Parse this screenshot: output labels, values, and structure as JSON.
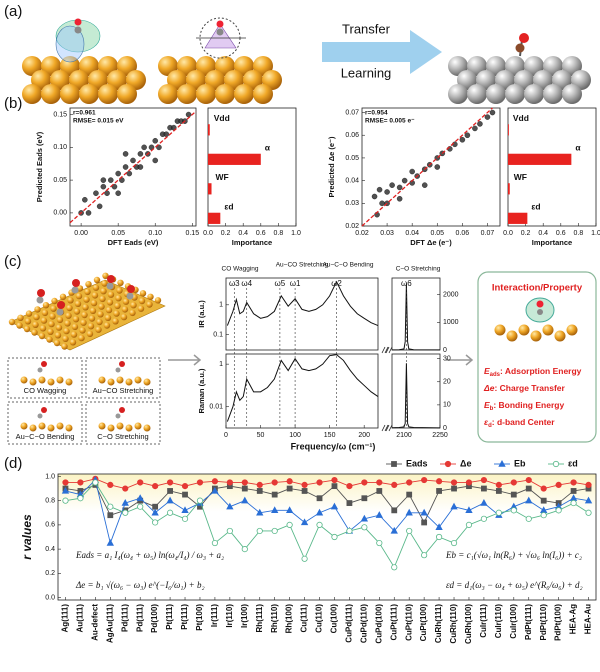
{
  "panel_labels": [
    "(a)",
    "(b)",
    "(c)",
    "(d)"
  ],
  "panel_a": {
    "arrow_text": [
      "Transfer",
      "Learning"
    ]
  },
  "panel_c": {
    "modes": [
      "CO Wagging",
      "Au−CO  Stretching",
      "Au−C−O  Bending",
      "C−O Stretching"
    ],
    "property_title": "Interaction/Property",
    "properties": [
      {
        "symbol": "E",
        "sub": "ads",
        "text": ": Adsorption Energy"
      },
      {
        "symbol": "Δe",
        "text": ": Charge Transfer"
      },
      {
        "symbol": "E",
        "sub": "b",
        "text": ": Bonding Energy"
      },
      {
        "symbol": "ε",
        "sub": "d",
        "text": ": d-band Center"
      }
    ]
  },
  "chart_data": [
    {
      "type": "scatter",
      "annotations": [
        "r=0.961",
        "RMSE= 0.015 eV"
      ],
      "xlabel": "DFT Eads (eV)",
      "ylabel": "Predicted Eads (eV)",
      "color": "#333333",
      "fit_line": true,
      "x": [
        0.0,
        0.005,
        0.01,
        0.02,
        0.025,
        0.03,
        0.035,
        0.04,
        0.045,
        0.05,
        0.055,
        0.06,
        0.065,
        0.07,
        0.075,
        0.08,
        0.085,
        0.09,
        0.095,
        0.1,
        0.105,
        0.11,
        0.115,
        0.12,
        0.125,
        0.13,
        0.135,
        0.14,
        0.145,
        0.05,
        0.06,
        0.08,
        0.1,
        0.03
      ],
      "values": [
        0.0,
        0.02,
        0.0,
        0.03,
        0.01,
        0.04,
        0.03,
        0.05,
        0.04,
        0.06,
        0.05,
        0.07,
        0.06,
        0.08,
        0.07,
        0.09,
        0.1,
        0.09,
        0.1,
        0.11,
        0.1,
        0.12,
        0.12,
        0.13,
        0.13,
        0.14,
        0.14,
        0.14,
        0.15,
        0.03,
        0.09,
        0.07,
        0.08,
        0.05
      ],
      "xlim": [
        -0.015,
        0.155
      ],
      "xticks": [
        {
          "value": 0,
          "label": "0.00"
        },
        0.05,
        {
          "value": 0.1,
          "label": "0.10"
        },
        0.15
      ],
      "ylim": [
        -0.02,
        0.16
      ],
      "yticks": [
        {
          "value": 0,
          "label": "0.00"
        },
        0.05,
        {
          "value": 0.1,
          "label": "0.10"
        },
        0.15
      ]
    },
    {
      "type": "bar",
      "orientation": "horizontal",
      "categories": [
        "Vdd",
        "α",
        "WF",
        "εd"
      ],
      "values": [
        0.02,
        0.6,
        0.04,
        0.14
      ],
      "color": "#e8231f",
      "xlabel": "Importance",
      "xlim": [
        0,
        1
      ],
      "xticks": [
        {
          "value": 0,
          "label": "0.0"
        },
        0.2,
        0.4,
        0.6,
        0.8,
        {
          "value": 1,
          "label": "1.0"
        }
      ]
    },
    {
      "type": "scatter",
      "annotations": [
        "r=0.954",
        "RMSE= 0.005 e⁻"
      ],
      "xlabel": "DFT Δe (e⁻)",
      "ylabel": "Predicted Δe (e⁻)",
      "color": "#333333",
      "fit_line": true,
      "x": [
        0.025,
        0.027,
        0.03,
        0.032,
        0.035,
        0.037,
        0.04,
        0.042,
        0.045,
        0.047,
        0.05,
        0.052,
        0.055,
        0.057,
        0.06,
        0.062,
        0.065,
        0.067,
        0.07,
        0.072,
        0.03,
        0.035,
        0.04,
        0.045,
        0.05,
        0.026,
        0.028
      ],
      "values": [
        0.033,
        0.036,
        0.035,
        0.038,
        0.037,
        0.04,
        0.039,
        0.042,
        0.045,
        0.047,
        0.05,
        0.052,
        0.054,
        0.056,
        0.058,
        0.06,
        0.063,
        0.065,
        0.068,
        0.07,
        0.03,
        0.032,
        0.044,
        0.038,
        0.046,
        0.025,
        0.03
      ],
      "xlim": [
        0.02,
        0.075
      ],
      "xticks": [
        0.02,
        0.03,
        0.04,
        0.05,
        0.06,
        0.07
      ],
      "ylim": [
        0.02,
        0.072
      ],
      "yticks": [
        0.02,
        0.03,
        0.04,
        0.05,
        0.06,
        0.07
      ]
    },
    {
      "type": "bar",
      "orientation": "horizontal",
      "categories": [
        "Vdd",
        "α",
        "WF",
        "εd"
      ],
      "values": [
        0.01,
        0.72,
        0.02,
        0.22
      ],
      "color": "#e8231f",
      "xlabel": "Importance",
      "xlim": [
        0,
        1
      ],
      "xticks": [
        {
          "value": 0,
          "label": "0.0"
        },
        0.2,
        0.4,
        0.6,
        0.8,
        {
          "value": 1,
          "label": "1.0"
        }
      ]
    },
    {
      "type": "spectrum",
      "ylabel": "IR (a.u.)",
      "log_y": true,
      "section_titles": [
        "CO Wagging",
        "Au−CO Stretching",
        "Au−C−O Bending",
        "C−O Stretching"
      ],
      "mode_labels": [
        {
          "label": "ω3",
          "x": 12
        },
        {
          "label": "ω4",
          "x": 30
        },
        {
          "label": "ω5",
          "x": 78
        },
        {
          "label": "ω1",
          "x": 100
        },
        {
          "label": "ω2",
          "x": 160
        },
        {
          "label": "ω6",
          "x": 2110
        }
      ],
      "xlim": [
        0,
        220
      ],
      "x2lim": [
        2050,
        2250
      ],
      "ylim": [
        0.03,
        8
      ],
      "yticks": [
        0.1,
        1
      ],
      "y2lim": [
        0,
        2600
      ],
      "y2ticks": [
        0,
        1000,
        2000
      ],
      "series": [
        {
          "color": "#111111",
          "x": [
            2,
            10,
            15,
            20,
            25,
            30,
            40,
            50,
            60,
            70,
            80,
            90,
            100,
            110,
            120,
            130,
            140,
            150,
            160,
            170,
            180,
            190,
            200,
            210,
            220
          ],
          "values": [
            0.2,
            0.6,
            1.5,
            0.5,
            0.6,
            1.2,
            0.5,
            0.35,
            0.4,
            0.6,
            2,
            0.9,
            1.6,
            0.7,
            0.6,
            0.7,
            1,
            2,
            6,
            2,
            0.9,
            0.5,
            0.35,
            0.25,
            0.2
          ]
        },
        {
          "color": "#111111",
          "axis": "y2",
          "x": [
            2050,
            2080,
            2100,
            2105,
            2110,
            2115,
            2120,
            2140,
            2250
          ],
          "values": [
            5,
            10,
            40,
            300,
            2400,
            300,
            40,
            10,
            3
          ]
        }
      ]
    },
    {
      "type": "spectrum",
      "ylabel": "Raman (a.u.)",
      "xlabel": "Frequency/ω (cm⁻¹)",
      "log_y": true,
      "xlim": [
        0,
        220
      ],
      "xticks": [
        0,
        50,
        100,
        150,
        200
      ],
      "x2lim": [
        2050,
        2250
      ],
      "x2ticks": [
        2100,
        2250
      ],
      "ylim": [
        0.001,
        3
      ],
      "yticks": [
        0.01,
        1
      ],
      "y2lim": [
        0,
        32
      ],
      "y2ticks": [
        0,
        10,
        20,
        30
      ],
      "series": [
        {
          "color": "#111111",
          "x": [
            2,
            10,
            15,
            20,
            25,
            30,
            40,
            50,
            60,
            70,
            80,
            90,
            100,
            110,
            120,
            130,
            140,
            150,
            160,
            170,
            180,
            190,
            200,
            210,
            220
          ],
          "values": [
            0.002,
            0.01,
            0.05,
            0.02,
            0.03,
            0.2,
            0.05,
            0.05,
            0.08,
            0.2,
            1.5,
            0.5,
            1.8,
            0.6,
            0.5,
            0.6,
            1,
            2.5,
            2.8,
            1.5,
            0.5,
            0.2,
            0.1,
            0.05,
            0.03
          ]
        },
        {
          "color": "#111111",
          "axis": "y2",
          "x": [
            2050,
            2080,
            2100,
            2105,
            2110,
            2115,
            2120,
            2140,
            2250
          ],
          "values": [
            0.1,
            0.2,
            0.5,
            2,
            28,
            2,
            0.5,
            0.2,
            0.05
          ]
        }
      ]
    },
    {
      "type": "line",
      "ylabel": "r values",
      "legend": "top-right",
      "categories": [
        "Ag(111)",
        "Au(111)",
        "Au-defect",
        "AgAu(111)",
        "Pd(111)",
        "Pd(111)",
        "Pd(100)",
        "Pt(111)",
        "Pt(111)",
        "Pt(100)",
        "Ir(111)",
        "Ir(110)",
        "Ir(100)",
        "Rh(111)",
        "Rh(110)",
        "Rh(100)",
        "Cu(111)",
        "Cu(110)",
        "Cu(100)",
        "CuPd(111)",
        "CuPd(110)",
        "CuPd(100)",
        "CuPt(111)",
        "CuPt(110)",
        "CuPt(100)",
        "CuRh(111)",
        "CuRh(110)",
        "CuRh(100)",
        "CuIr(111)",
        "CuIr(110)",
        "CuIr(100)",
        "PdPt(111)",
        "PdPt(110)",
        "PdPt(100)",
        "HEA-Ag",
        "HEA-Au"
      ],
      "series": [
        {
          "name": "Eads",
          "color": "#555555",
          "marker": "square",
          "values": [
            0.9,
            0.88,
            0.93,
            0.68,
            0.72,
            0.8,
            0.75,
            0.88,
            0.85,
            0.75,
            0.9,
            0.92,
            0.9,
            0.88,
            0.85,
            0.9,
            0.88,
            0.82,
            0.92,
            0.78,
            0.82,
            0.88,
            0.72,
            0.85,
            0.62,
            0.88,
            0.9,
            0.92,
            0.9,
            0.88,
            0.85,
            0.9,
            0.8,
            0.78,
            0.88,
            0.9
          ]
        },
        {
          "name": "Δe",
          "color": "#e53935",
          "marker": "circle",
          "values": [
            0.95,
            0.95,
            0.98,
            0.93,
            0.9,
            0.95,
            0.92,
            0.95,
            0.92,
            0.95,
            0.96,
            0.95,
            0.95,
            0.93,
            0.95,
            0.96,
            0.93,
            0.95,
            0.97,
            0.92,
            0.95,
            0.95,
            0.93,
            0.95,
            0.97,
            0.96,
            0.95,
            0.95,
            0.97,
            0.93,
            0.95,
            0.97,
            0.9,
            0.93,
            0.95,
            0.93
          ]
        },
        {
          "name": "Eb",
          "color": "#2a6fd6",
          "marker": "triangle",
          "values": [
            0.88,
            0.85,
            0.97,
            0.45,
            0.78,
            0.82,
            0.7,
            0.8,
            0.72,
            0.78,
            0.88,
            0.75,
            0.8,
            0.7,
            0.72,
            0.72,
            0.62,
            0.7,
            0.75,
            0.55,
            0.65,
            0.68,
            0.55,
            0.7,
            0.7,
            0.58,
            0.75,
            0.72,
            0.78,
            0.68,
            0.75,
            0.8,
            0.72,
            0.75,
            0.82,
            0.8
          ]
        },
        {
          "name": "εd",
          "color": "#59b88a",
          "marker": "open-circle",
          "values": [
            0.8,
            0.82,
            0.95,
            0.75,
            0.7,
            0.75,
            0.62,
            0.7,
            0.65,
            0.8,
            0.45,
            0.55,
            0.4,
            0.55,
            0.55,
            0.6,
            0.32,
            0.6,
            0.5,
            0.55,
            0.58,
            0.45,
            0.25,
            0.55,
            0.35,
            0.5,
            0.45,
            0.6,
            0.65,
            0.7,
            0.72,
            0.65,
            0.68,
            0.72,
            0.78,
            0.7
          ]
        }
      ],
      "annotations": [
        "Eads = a₁ I₄(ω₄ + ω₅) ln(ω₄/I₄) / ω₃ + a₂",
        "Δe = b₁ √(ω₆ − ω₃) e^(−I₆/ω₁) + b₂",
        "Eb = c₁(√ω₁ ln(R₆) + √ω₆ ln(I₆)) + c₂",
        "εd = d₁(ω₃ − ω₄ + ω₅) e^(R₆/ω₆) + d₂"
      ],
      "ylim": [
        -0.02,
        1.02
      ],
      "yticks": [
        {
          "value": 0,
          "label": "0.0"
        },
        0.2,
        0.4,
        0.6,
        0.8,
        {
          "value": 1,
          "label": "1.0"
        }
      ]
    }
  ]
}
